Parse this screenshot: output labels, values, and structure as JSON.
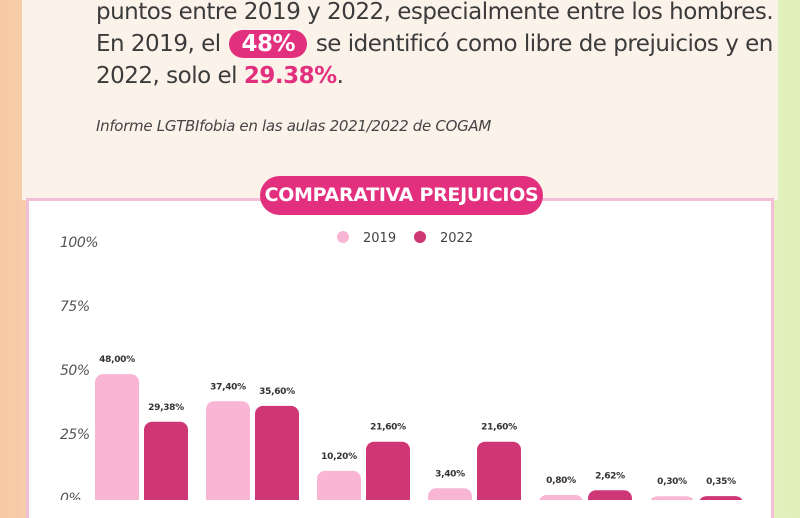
{
  "intro": {
    "line1": "puntos entre 2019 y 2022, especialmente entre los hombres.",
    "line2_pre": "En 2019, el",
    "line2_highlight": "48%",
    "line2_post": "se identificó como libre de prejuicios y en",
    "line3_pre": "2022, solo el",
    "line3_highlight": "29.38%",
    "line3_post": "."
  },
  "source": "Informe LGTBIfobia en las aulas 2021/2022 de COGAM",
  "colors": {
    "accent": "#e2307f",
    "series_2019": "#f8b5d4",
    "series_2022": "#cf3676"
  },
  "chart_data": {
    "type": "bar",
    "title": "COMPARATIVA PREJUICIOS",
    "categories": [
      "",
      "",
      "",
      "",
      "",
      ""
    ],
    "series": [
      {
        "name": "2019",
        "values": [
          48.0,
          37.4,
          10.2,
          3.4,
          0.8,
          0.3
        ],
        "labels": [
          "48,00%",
          "37,40%",
          "10,20%",
          "3,40%",
          "0,80%",
          "0,30%"
        ]
      },
      {
        "name": "2022",
        "values": [
          29.38,
          35.6,
          21.6,
          21.6,
          2.62,
          0.35
        ],
        "labels": [
          "29,38%",
          "35,60%",
          "21,60%",
          "21,60%",
          "2,62%",
          "0,35%"
        ]
      }
    ],
    "yticks": [
      "0%",
      "25%",
      "50%",
      "75%",
      "100%"
    ],
    "ylim": [
      0,
      100
    ],
    "legend": "top-center",
    "grid": false
  }
}
